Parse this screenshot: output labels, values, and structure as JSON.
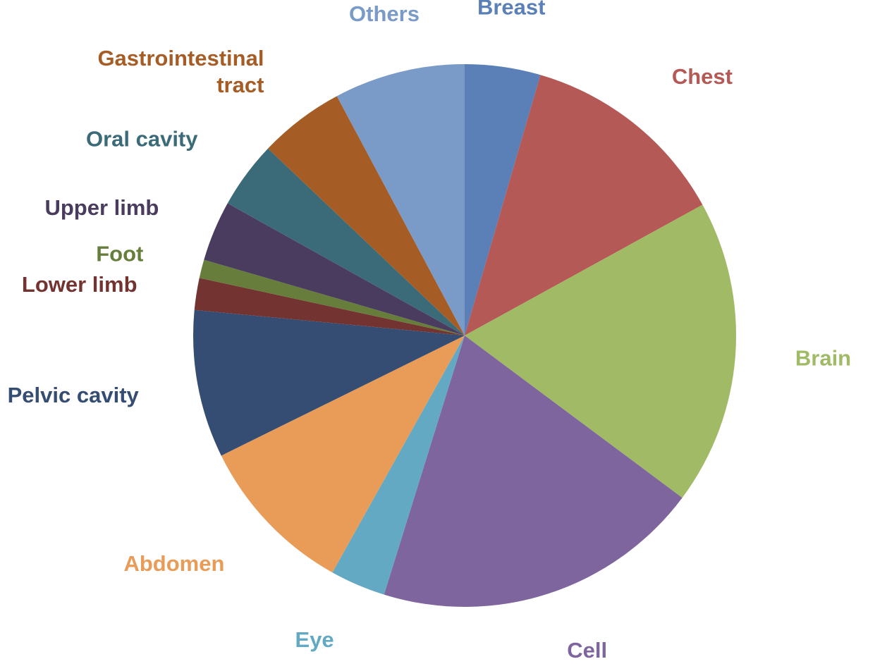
{
  "chart_data": {
    "type": "pie",
    "title": "",
    "start_angle_deg": 0,
    "direction": "clockwise",
    "slices": [
      {
        "label": [
          "Breast"
        ],
        "value": 4.5,
        "color": "#5b80b8"
      },
      {
        "label": [
          "Chest"
        ],
        "value": 12.5,
        "color": "#b45955"
      },
      {
        "label": [
          "Brain"
        ],
        "value": 18.2,
        "color": "#a0ba66"
      },
      {
        "label": [
          "Cell"
        ],
        "value": 19.6,
        "color": "#7e659e"
      },
      {
        "label": [
          "Eye"
        ],
        "value": 3.3,
        "color": "#63a9c4"
      },
      {
        "label": [
          "Abdomen"
        ],
        "value": 9.6,
        "color": "#e89c58"
      },
      {
        "label": [
          "Pelvic cavity"
        ],
        "value": 8.8,
        "color": "#354d73"
      },
      {
        "label": [
          "Lower limb"
        ],
        "value": 1.9,
        "color": "#733331"
      },
      {
        "label": [
          "Foot"
        ],
        "value": 1.1,
        "color": "#667d3b"
      },
      {
        "label": [
          "Upper limb"
        ],
        "value": 3.6,
        "color": "#4a3c5e"
      },
      {
        "label": [
          "Oral cavity"
        ],
        "value": 4.0,
        "color": "#3b6a78"
      },
      {
        "label": [
          "Gastrointestinal",
          "tract"
        ],
        "value": 5.1,
        "color": "#a65d25"
      },
      {
        "label": [
          "Others"
        ],
        "value": 7.8,
        "color": "#7a9ac8"
      }
    ]
  }
}
